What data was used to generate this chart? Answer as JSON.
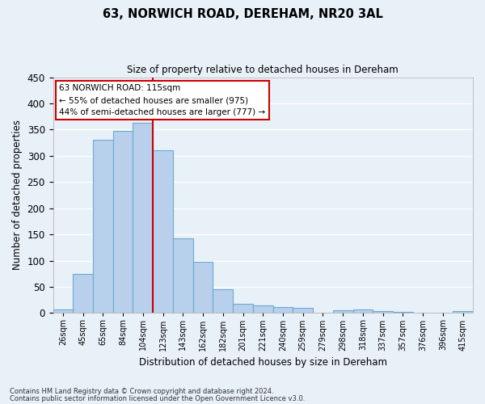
{
  "title": "63, NORWICH ROAD, DEREHAM, NR20 3AL",
  "subtitle": "Size of property relative to detached houses in Dereham",
  "xlabel": "Distribution of detached houses by size in Dereham",
  "ylabel": "Number of detached properties",
  "bar_labels": [
    "26sqm",
    "45sqm",
    "65sqm",
    "84sqm",
    "104sqm",
    "123sqm",
    "143sqm",
    "162sqm",
    "182sqm",
    "201sqm",
    "221sqm",
    "240sqm",
    "259sqm",
    "279sqm",
    "298sqm",
    "318sqm",
    "337sqm",
    "357sqm",
    "376sqm",
    "396sqm",
    "415sqm"
  ],
  "bar_values": [
    7,
    75,
    330,
    348,
    363,
    310,
    143,
    97,
    46,
    18,
    15,
    12,
    10,
    0,
    5,
    6,
    3,
    2,
    1,
    0,
    3
  ],
  "bar_color": "#b8d0eb",
  "bar_edge_color": "#6aaad4",
  "background_color": "#e8f0f8",
  "grid_color": "#ffffff",
  "property_line_color": "#cc0000",
  "annotation_title": "63 NORWICH ROAD: 115sqm",
  "annotation_line1": "← 55% of detached houses are smaller (975)",
  "annotation_line2": "44% of semi-detached houses are larger (777) →",
  "annotation_box_color": "white",
  "annotation_box_edge": "#cc0000",
  "ylim": [
    0,
    450
  ],
  "yticks": [
    0,
    50,
    100,
    150,
    200,
    250,
    300,
    350,
    400,
    450
  ],
  "footnote1": "Contains HM Land Registry data © Crown copyright and database right 2024.",
  "footnote2": "Contains public sector information licensed under the Open Government Licence v3.0."
}
